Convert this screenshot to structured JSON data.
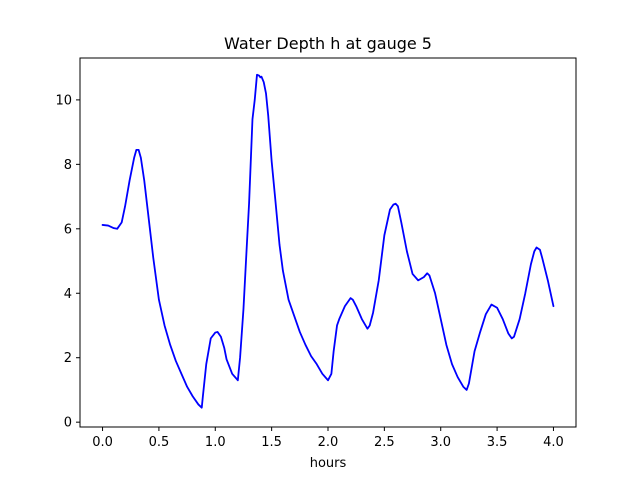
{
  "chart_data": {
    "type": "line",
    "title": "Water Depth h at gauge 5",
    "xlabel": "hours",
    "ylabel": "",
    "xlim": [
      -0.2,
      4.2
    ],
    "ylim": [
      -0.15,
      11.3
    ],
    "xticks": [
      0.0,
      0.5,
      1.0,
      1.5,
      2.0,
      2.5,
      3.0,
      3.5,
      4.0
    ],
    "xtick_labels": [
      "0.0",
      "0.5",
      "1.0",
      "1.5",
      "2.0",
      "2.5",
      "3.0",
      "3.5",
      "4.0"
    ],
    "yticks": [
      0,
      2,
      4,
      6,
      8,
      10
    ],
    "ytick_labels": [
      "0",
      "2",
      "4",
      "6",
      "8",
      "10"
    ],
    "grid": false,
    "series": [
      {
        "color": "#0000ff",
        "x": [
          0.0,
          0.05,
          0.1,
          0.13,
          0.17,
          0.2,
          0.24,
          0.28,
          0.3,
          0.32,
          0.34,
          0.37,
          0.4,
          0.45,
          0.5,
          0.55,
          0.6,
          0.65,
          0.7,
          0.75,
          0.8,
          0.85,
          0.88,
          0.89,
          0.92,
          0.93,
          0.96,
          1.0,
          1.02,
          1.05,
          1.08,
          1.1,
          1.15,
          1.2,
          1.22,
          1.25,
          1.28,
          1.3,
          1.33,
          1.35,
          1.37,
          1.39,
          1.4,
          1.41,
          1.43,
          1.45,
          1.47,
          1.5,
          1.53,
          1.57,
          1.6,
          1.65,
          1.7,
          1.75,
          1.8,
          1.85,
          1.9,
          1.95,
          2.0,
          2.03,
          2.05,
          2.08,
          2.1,
          2.15,
          2.2,
          2.22,
          2.25,
          2.3,
          2.35,
          2.37,
          2.4,
          2.45,
          2.5,
          2.55,
          2.58,
          2.6,
          2.62,
          2.65,
          2.7,
          2.75,
          2.8,
          2.85,
          2.88,
          2.9,
          2.95,
          3.0,
          3.05,
          3.1,
          3.15,
          3.2,
          3.23,
          3.25,
          3.3,
          3.35,
          3.4,
          3.45,
          3.5,
          3.55,
          3.6,
          3.63,
          3.65,
          3.7,
          3.75,
          3.8,
          3.83,
          3.85,
          3.88,
          3.9,
          3.95,
          4.0
        ],
        "y": [
          6.12,
          6.1,
          6.02,
          6.0,
          6.2,
          6.7,
          7.5,
          8.2,
          8.45,
          8.45,
          8.2,
          7.5,
          6.6,
          5.1,
          3.8,
          3.0,
          2.4,
          1.9,
          1.5,
          1.1,
          0.8,
          0.55,
          0.45,
          0.8,
          1.8,
          2.0,
          2.6,
          2.78,
          2.8,
          2.65,
          2.3,
          1.95,
          1.5,
          1.3,
          2.0,
          3.5,
          5.5,
          6.8,
          9.4,
          10.0,
          10.78,
          10.75,
          10.7,
          10.72,
          10.55,
          10.2,
          9.5,
          8.1,
          7.0,
          5.5,
          4.7,
          3.8,
          3.3,
          2.8,
          2.4,
          2.05,
          1.8,
          1.5,
          1.3,
          1.5,
          2.2,
          3.0,
          3.2,
          3.6,
          3.85,
          3.8,
          3.6,
          3.2,
          2.9,
          3.0,
          3.4,
          4.4,
          5.8,
          6.6,
          6.75,
          6.78,
          6.7,
          6.2,
          5.3,
          4.6,
          4.4,
          4.5,
          4.62,
          4.55,
          4.0,
          3.2,
          2.4,
          1.8,
          1.4,
          1.1,
          1.0,
          1.2,
          2.2,
          2.8,
          3.35,
          3.65,
          3.55,
          3.2,
          2.75,
          2.6,
          2.65,
          3.2,
          4.0,
          4.9,
          5.3,
          5.42,
          5.35,
          5.1,
          4.4,
          3.6
        ]
      }
    ]
  }
}
